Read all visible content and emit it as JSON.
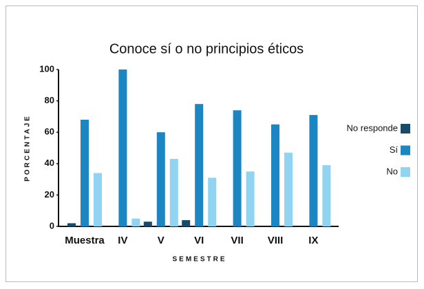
{
  "chart_data": {
    "type": "bar",
    "title": "Conoce sí o no principios éticos",
    "x_label": "SEMESTRE",
    "y_label": "PORCENTAJE",
    "categories": [
      "Muestra",
      "IV",
      "V",
      "VI",
      "VII",
      "VIII",
      "IX"
    ],
    "series": [
      {
        "name": "No responde",
        "color": "#184a6a",
        "values": [
          2,
          0,
          3,
          4,
          0,
          0,
          0
        ]
      },
      {
        "name": "Sí",
        "color": "#1b86c1",
        "values": [
          68,
          100,
          60,
          78,
          74,
          65,
          71
        ]
      },
      {
        "name": "No",
        "color": "#90d4f2",
        "values": [
          34,
          5,
          43,
          31,
          35,
          47,
          39
        ]
      }
    ],
    "ylim": [
      0,
      100
    ],
    "yticks": [
      0,
      20,
      40,
      60,
      80,
      100
    ],
    "legend": "right"
  }
}
